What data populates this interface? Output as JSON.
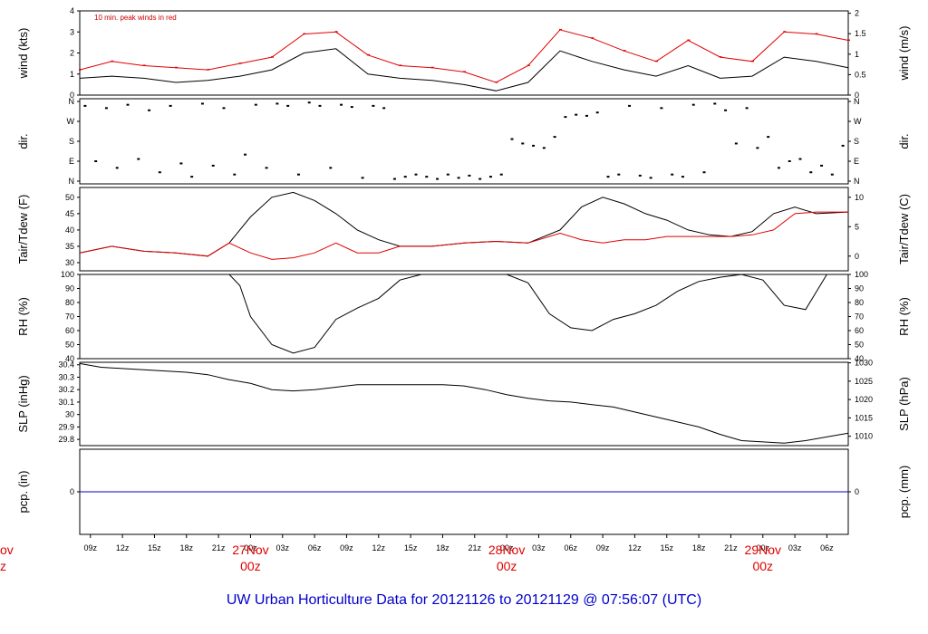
{
  "footer": {
    "text": "UW Urban Horticulture Data for 20121126  to  20121129 @ 07:56:07  (UTC)"
  },
  "colors": {
    "red": "#e00000",
    "blue": "#0000cc",
    "black": "#000000"
  },
  "chart_data": [
    {
      "id": "wind",
      "type": "line",
      "ylabel": "wind (kts)",
      "ylabel_right": "wind (m/s)",
      "ylim": [
        0,
        4
      ],
      "yticks": [
        0,
        1,
        2,
        3,
        4
      ],
      "yticks_right": [
        0,
        0.5,
        1,
        1.5,
        2
      ],
      "annotation": "10 min. peak winds in red",
      "series": [
        {
          "name": "10 min. peak winds",
          "color": "#e00000",
          "x": [
            0,
            3,
            6,
            9,
            12,
            15,
            18,
            21,
            24,
            27,
            30,
            33,
            36,
            39,
            42,
            45,
            48,
            51,
            54,
            57,
            60,
            63,
            66,
            69,
            72
          ],
          "y": [
            1.2,
            1.6,
            1.4,
            1.3,
            1.2,
            1.5,
            1.8,
            2.9,
            3.0,
            1.9,
            1.4,
            1.3,
            1.1,
            0.6,
            1.4,
            3.1,
            2.7,
            2.1,
            1.6,
            2.6,
            1.8,
            1.6,
            3.0,
            2.9,
            2.6
          ]
        },
        {
          "name": "wind",
          "color": "#000000",
          "x": [
            0,
            3,
            6,
            9,
            12,
            15,
            18,
            21,
            24,
            27,
            30,
            33,
            36,
            39,
            42,
            45,
            48,
            51,
            54,
            57,
            60,
            63,
            66,
            69,
            72
          ],
          "y": [
            0.8,
            0.9,
            0.8,
            0.6,
            0.7,
            0.9,
            1.2,
            2.0,
            2.2,
            1.0,
            0.8,
            0.7,
            0.5,
            0.2,
            0.6,
            2.1,
            1.6,
            1.2,
            0.9,
            1.4,
            0.8,
            0.9,
            1.8,
            1.6,
            1.3
          ]
        }
      ]
    },
    {
      "id": "dir",
      "type": "scatter",
      "ylabel": "dir.",
      "ylabel_right": "dir.",
      "ylim": [
        0,
        360
      ],
      "yticks": [
        "N",
        "E",
        "S",
        "W",
        "N"
      ],
      "yticks_right": [
        "N",
        "E",
        "S",
        "W",
        "N"
      ],
      "series": [
        {
          "name": "direction",
          "color": "#000000",
          "x": [
            0.5,
            1.5,
            2.5,
            3.5,
            4.5,
            5.5,
            6.5,
            7.5,
            8.5,
            9.5,
            10.5,
            11.5,
            12.5,
            13.5,
            14.5,
            15.5,
            16.5,
            17.5,
            18.5,
            19.5,
            20.5,
            21.5,
            22.5,
            23.5,
            24.5,
            25.5,
            26.5,
            27.5,
            28.5,
            29.5,
            30.5,
            31.5,
            32.5,
            33.5,
            34.5,
            35.5,
            36.5,
            37.5,
            38.5,
            39.5,
            40.5,
            41.5,
            42.5,
            43.5,
            44.5,
            45.5,
            46.5,
            47.5,
            48.5,
            49.5,
            50.5,
            51.5,
            52.5,
            53.5,
            54.5,
            55.5,
            56.5,
            57.5,
            58.5,
            59.5,
            60.5,
            61.5,
            62.5,
            63.5,
            64.5,
            65.5,
            66.5,
            67.5,
            68.5,
            69.5,
            70.5,
            71.5
          ],
          "y": [
            340,
            90,
            330,
            60,
            345,
            100,
            320,
            40,
            340,
            80,
            20,
            350,
            70,
            330,
            30,
            120,
            345,
            60,
            350,
            340,
            30,
            355,
            340,
            60,
            345,
            335,
            15,
            340,
            330,
            10,
            20,
            30,
            20,
            10,
            30,
            15,
            25,
            10,
            20,
            30,
            190,
            170,
            160,
            150,
            200,
            290,
            300,
            295,
            310,
            20,
            30,
            340,
            25,
            15,
            330,
            30,
            20,
            345,
            40,
            350,
            320,
            170,
            330,
            150,
            200,
            60,
            90,
            100,
            40,
            70,
            30,
            160
          ]
        }
      ]
    },
    {
      "id": "temp",
      "type": "line",
      "ylabel": "Tair/Tdew (F)",
      "ylabel_right": "Tair/Tdew (C)",
      "ylim": [
        27.5,
        53
      ],
      "yticks": [
        30,
        35,
        40,
        45,
        50
      ],
      "yticks_right": [
        0,
        5,
        10
      ],
      "series": [
        {
          "name": "Tair",
          "color": "#000000",
          "x": [
            0,
            3,
            6,
            9,
            12,
            14,
            16,
            18,
            20,
            22,
            24,
            26,
            28,
            30,
            33,
            36,
            39,
            42,
            45,
            47,
            49,
            51,
            53,
            55,
            57,
            59,
            61,
            63,
            65,
            67,
            69,
            72
          ],
          "y": [
            33,
            35,
            33.5,
            33,
            32,
            36,
            44,
            50,
            51.5,
            49,
            45,
            40,
            37,
            35,
            35,
            36,
            36.5,
            36,
            40,
            47,
            50,
            48,
            45,
            43,
            40,
            38.5,
            38,
            39.5,
            45,
            47,
            45,
            45.5
          ]
        },
        {
          "name": "Tdew",
          "color": "#e00000",
          "x": [
            0,
            3,
            6,
            9,
            12,
            14,
            16,
            18,
            20,
            22,
            24,
            26,
            28,
            30,
            33,
            36,
            39,
            42,
            45,
            47,
            49,
            51,
            53,
            55,
            57,
            59,
            61,
            63,
            65,
            67,
            69,
            72
          ],
          "y": [
            33,
            35,
            33.5,
            33,
            32,
            36,
            33,
            31,
            31.5,
            33,
            36,
            33,
            33,
            35,
            35,
            36,
            36.5,
            36,
            39,
            37,
            36,
            37,
            37,
            38,
            38,
            38,
            38,
            38.5,
            40,
            45,
            45.5,
            45.5
          ]
        }
      ]
    },
    {
      "id": "rh",
      "type": "line",
      "ylabel": "RH (%)",
      "ylabel_right": "RH (%)",
      "ylim": [
        40,
        100
      ],
      "yticks": [
        40,
        50,
        60,
        70,
        80,
        90,
        100
      ],
      "yticks_right": [
        40,
        50,
        60,
        70,
        80,
        90,
        100
      ],
      "series": [
        {
          "name": "RH",
          "color": "#000000",
          "x": [
            0,
            3,
            6,
            9,
            12,
            14,
            15,
            16,
            18,
            20,
            22,
            24,
            26,
            28,
            30,
            32,
            34,
            36,
            38,
            40,
            42,
            44,
            46,
            48,
            50,
            52,
            54,
            56,
            58,
            60,
            62,
            64,
            66,
            68,
            70,
            72
          ],
          "y": [
            100,
            100,
            100,
            100,
            100,
            100,
            92,
            70,
            50,
            44,
            48,
            68,
            76,
            83,
            96,
            100,
            100,
            100,
            100,
            100,
            94,
            72,
            62,
            60,
            68,
            72,
            78,
            88,
            95,
            98,
            100,
            96,
            78,
            75,
            100,
            100
          ]
        }
      ]
    },
    {
      "id": "slp",
      "type": "line",
      "ylabel": "SLP (inHg)",
      "ylabel_right": "SLP (hPa)",
      "ylim": [
        29.75,
        30.42
      ],
      "yticks": [
        29.8,
        29.9,
        30.0,
        30.1,
        30.2,
        30.3,
        30.4
      ],
      "yticks_right": [
        1010,
        1015,
        1020,
        1025,
        1030
      ],
      "series": [
        {
          "name": "SLP",
          "color": "#000000",
          "x": [
            0,
            2,
            4,
            6,
            8,
            10,
            12,
            14,
            16,
            18,
            20,
            22,
            24,
            26,
            28,
            30,
            32,
            34,
            36,
            38,
            40,
            42,
            44,
            46,
            48,
            50,
            52,
            54,
            56,
            58,
            60,
            62,
            64,
            66,
            68,
            70,
            72
          ],
          "y": [
            30.41,
            30.38,
            30.37,
            30.36,
            30.35,
            30.34,
            30.32,
            30.28,
            30.25,
            30.2,
            30.19,
            30.2,
            30.22,
            30.24,
            30.24,
            30.24,
            30.24,
            30.24,
            30.23,
            30.2,
            30.16,
            30.13,
            30.11,
            30.1,
            30.08,
            30.06,
            30.02,
            29.98,
            29.94,
            29.9,
            29.84,
            29.79,
            29.78,
            29.77,
            29.79,
            29.82,
            29.85
          ]
        }
      ]
    },
    {
      "id": "pcp",
      "type": "line",
      "ylabel": "pcp. (in)",
      "ylabel_right": "pcp. (mm)",
      "ylim": [
        -1,
        1
      ],
      "yticks": [
        0
      ],
      "yticks_right": [
        0
      ],
      "series": [
        {
          "name": "pcp",
          "color": "#0000cc",
          "x": [
            0,
            72
          ],
          "y": [
            0,
            0
          ]
        }
      ]
    }
  ],
  "x_axis": {
    "range": [
      0,
      72
    ],
    "ticks": [
      {
        "x": 1,
        "label": "09z"
      },
      {
        "x": 4,
        "label": "12z"
      },
      {
        "x": 7,
        "label": "15z"
      },
      {
        "x": 10,
        "label": "18z"
      },
      {
        "x": 13,
        "label": "21z"
      },
      {
        "x": 16,
        "label": "00z"
      },
      {
        "x": 19,
        "label": "03z"
      },
      {
        "x": 22,
        "label": "06z"
      },
      {
        "x": 25,
        "label": "09z"
      },
      {
        "x": 28,
        "label": "12z"
      },
      {
        "x": 31,
        "label": "15z"
      },
      {
        "x": 34,
        "label": "18z"
      },
      {
        "x": 37,
        "label": "21z"
      },
      {
        "x": 40,
        "label": "00z"
      },
      {
        "x": 43,
        "label": "03z"
      },
      {
        "x": 46,
        "label": "06z"
      },
      {
        "x": 49,
        "label": "09z"
      },
      {
        "x": 52,
        "label": "12z"
      },
      {
        "x": 55,
        "label": "15z"
      },
      {
        "x": 58,
        "label": "18z"
      },
      {
        "x": 61,
        "label": "21z"
      },
      {
        "x": 64,
        "label": "00z"
      },
      {
        "x": 67,
        "label": "03z"
      },
      {
        "x": 70,
        "label": "06z"
      }
    ],
    "day_labels": [
      {
        "x": 16,
        "date": "27Nov",
        "time": "00z"
      },
      {
        "x": 40,
        "date": "28Nov",
        "time": "00z"
      },
      {
        "x": 64,
        "date": "29Nov",
        "time": "00z"
      }
    ],
    "left_edge_date": "ov",
    "left_edge_time": "z"
  }
}
